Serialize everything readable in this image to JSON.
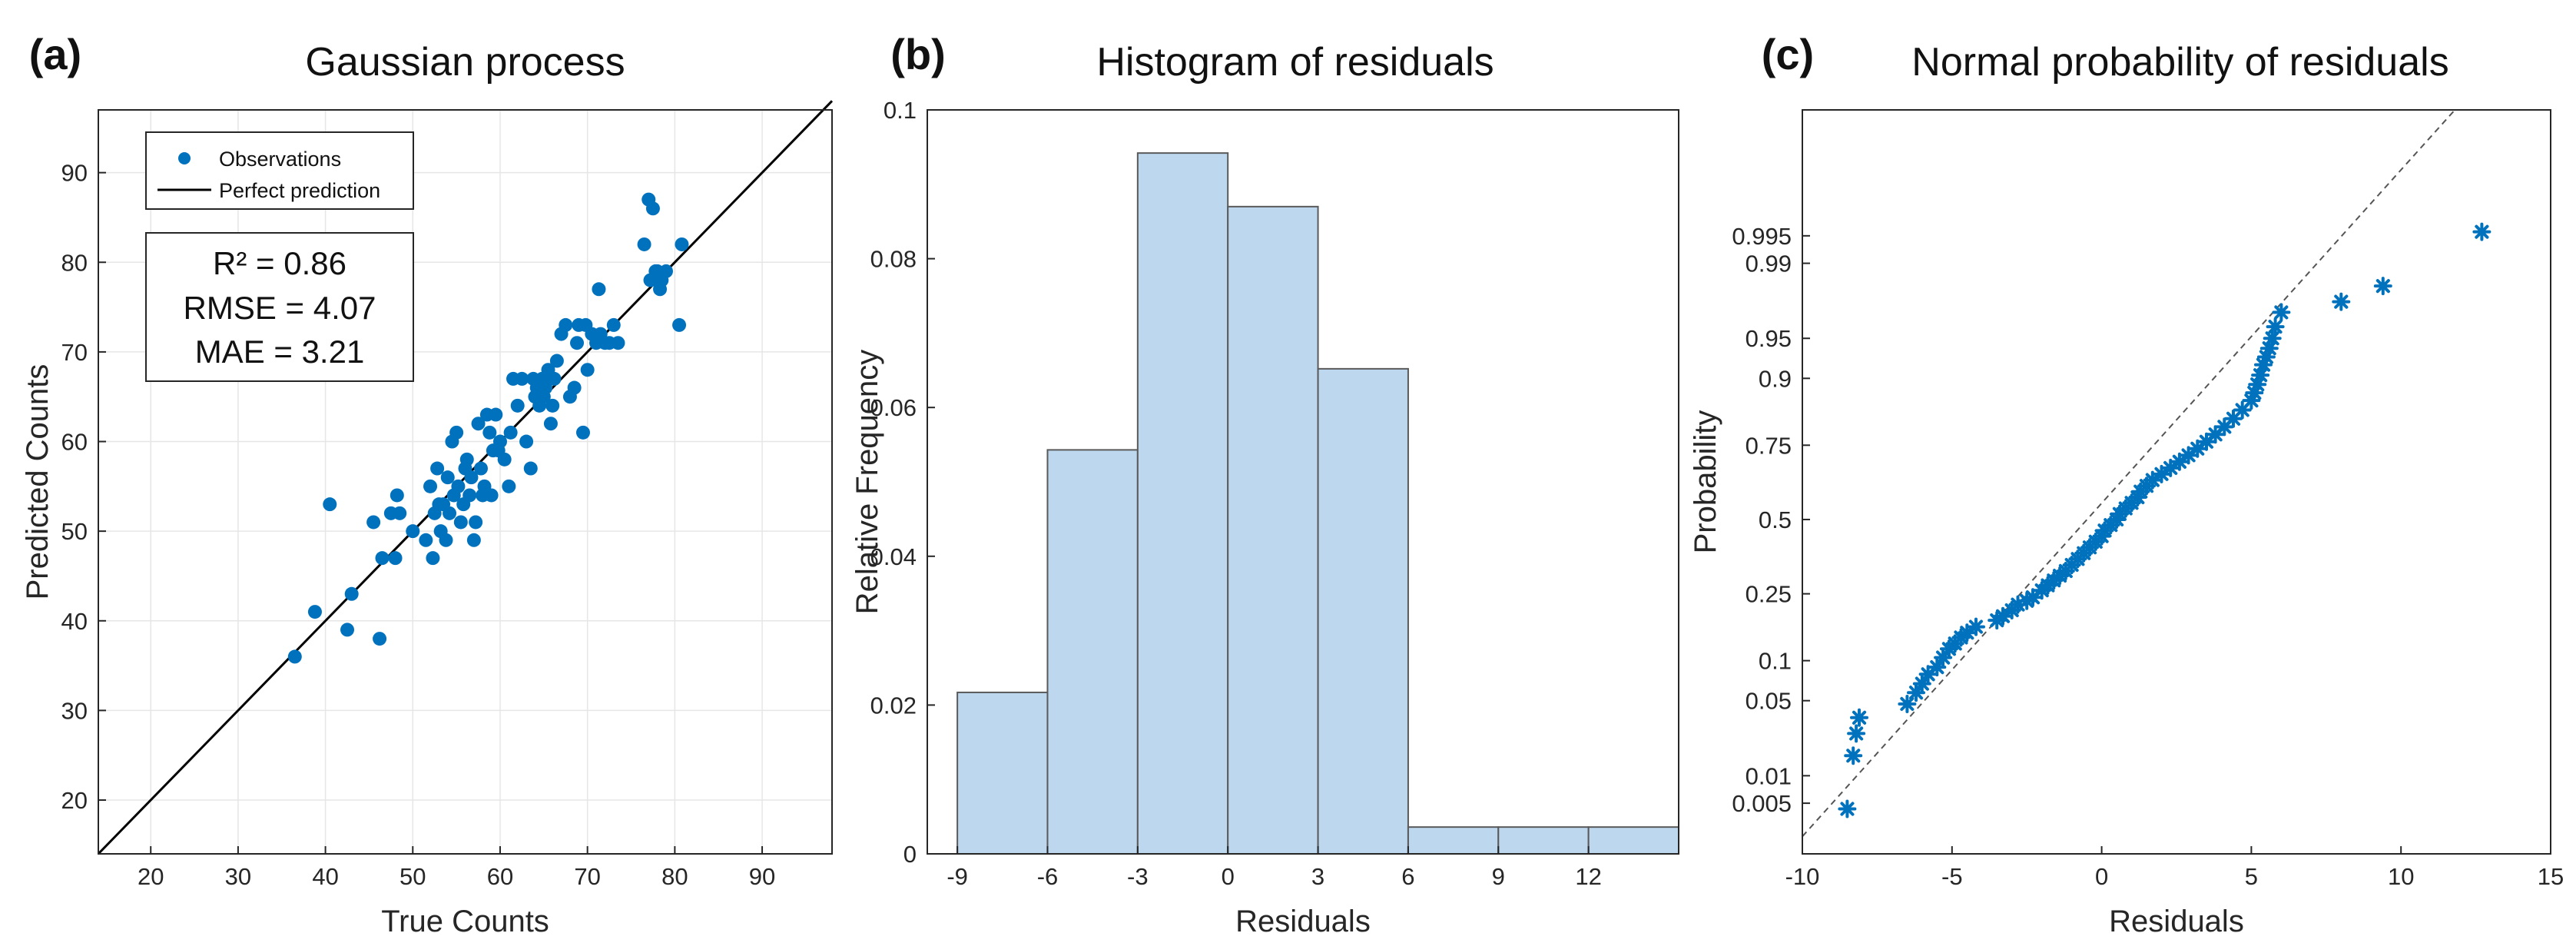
{
  "colors": {
    "marker": "#0072BD",
    "bar_fill": "#BDD7EE",
    "bar_edge": "#5A5A5A",
    "line": "#000000",
    "ref_line": "#555555"
  },
  "chart_data": [
    {
      "panel_label": "(a)",
      "type": "scatter",
      "title": "Gaussian process",
      "xlabel": "True Counts",
      "ylabel": "Predicted Counts",
      "xlim": [
        14,
        98
      ],
      "ylim": [
        14,
        97
      ],
      "xticks": [
        20,
        30,
        40,
        50,
        60,
        70,
        80,
        90
      ],
      "yticks": [
        20,
        30,
        40,
        50,
        60,
        70,
        80,
        90
      ],
      "grid": true,
      "legend": {
        "position": "top-left",
        "entries": [
          "Observations",
          "Perfect prediction"
        ]
      },
      "stats": {
        "r2_label": "R² = 0.86",
        "rmse_label": "RMSE = 4.07",
        "mae_label": "MAE = 3.21"
      },
      "reference_line": {
        "name": "Perfect prediction",
        "x": [
          14,
          98
        ],
        "y": [
          14,
          98
        ]
      },
      "series": [
        {
          "name": "Observations",
          "points": [
            [
              36.5,
              36
            ],
            [
              38.8,
              41
            ],
            [
              40.5,
              53
            ],
            [
              42.5,
              39
            ],
            [
              43,
              43
            ],
            [
              45.5,
              51
            ],
            [
              46.5,
              47
            ],
            [
              46.2,
              38
            ],
            [
              47.5,
              52
            ],
            [
              48,
              47
            ],
            [
              48.2,
              54
            ],
            [
              48.5,
              52
            ],
            [
              50,
              50
            ],
            [
              51.5,
              49
            ],
            [
              52,
              55
            ],
            [
              52.3,
              47
            ],
            [
              52.5,
              52
            ],
            [
              52.8,
              57
            ],
            [
              53,
              53
            ],
            [
              53.2,
              50
            ],
            [
              53.5,
              53
            ],
            [
              53.8,
              49
            ],
            [
              54,
              56
            ],
            [
              54.2,
              52
            ],
            [
              54.5,
              60
            ],
            [
              54.7,
              54
            ],
            [
              55,
              61
            ],
            [
              55.2,
              55
            ],
            [
              55.5,
              51
            ],
            [
              55.8,
              53
            ],
            [
              56,
              57
            ],
            [
              56.2,
              58
            ],
            [
              56.5,
              54
            ],
            [
              56.7,
              56
            ],
            [
              57,
              49
            ],
            [
              57.2,
              51
            ],
            [
              57.5,
              62
            ],
            [
              57.8,
              57
            ],
            [
              58,
              54
            ],
            [
              58.2,
              55
            ],
            [
              58.5,
              63
            ],
            [
              58.8,
              61
            ],
            [
              59,
              54
            ],
            [
              59.2,
              59
            ],
            [
              59.5,
              63
            ],
            [
              59.8,
              59
            ],
            [
              60,
              60
            ],
            [
              60.5,
              58
            ],
            [
              61,
              55
            ],
            [
              61.2,
              61
            ],
            [
              61.5,
              67
            ],
            [
              62,
              64
            ],
            [
              62.5,
              67
            ],
            [
              63,
              60
            ],
            [
              63.5,
              57
            ],
            [
              63.8,
              67
            ],
            [
              64,
              65
            ],
            [
              64.2,
              66
            ],
            [
              64.5,
              64
            ],
            [
              64.8,
              67
            ],
            [
              65,
              65
            ],
            [
              65.2,
              66
            ],
            [
              65.5,
              68
            ],
            [
              65.8,
              62
            ],
            [
              66,
              64
            ],
            [
              66.2,
              67
            ],
            [
              66.5,
              69
            ],
            [
              67,
              72
            ],
            [
              67.5,
              73
            ],
            [
              68,
              65
            ],
            [
              68.5,
              66
            ],
            [
              68.8,
              71
            ],
            [
              69,
              73
            ],
            [
              69.5,
              61
            ],
            [
              69.8,
              73
            ],
            [
              70,
              68
            ],
            [
              70.5,
              72
            ],
            [
              71,
              71
            ],
            [
              71.3,
              77
            ],
            [
              71.5,
              72
            ],
            [
              72,
              71
            ],
            [
              72.5,
              71
            ],
            [
              73,
              73
            ],
            [
              73.5,
              71
            ],
            [
              76.5,
              82
            ],
            [
              77,
              87
            ],
            [
              77.2,
              78
            ],
            [
              77.5,
              86
            ],
            [
              77.8,
              79
            ],
            [
              78,
              79
            ],
            [
              78.3,
              77
            ],
            [
              78.5,
              78
            ],
            [
              79,
              79
            ],
            [
              80.5,
              73
            ],
            [
              80.8,
              82
            ]
          ]
        }
      ]
    },
    {
      "panel_label": "(b)",
      "type": "bar",
      "title": "Histogram of residuals",
      "xlabel": "Residuals",
      "ylabel": "Relative Frequency",
      "xlim": [
        -10,
        15
      ],
      "ylim": [
        0,
        0.1
      ],
      "xticks": [
        -9,
        -6,
        -3,
        0,
        3,
        6,
        9,
        12
      ],
      "xtick_labels": [
        "-9",
        "-6",
        "-3",
        "0",
        "3",
        "6",
        "9",
        "12"
      ],
      "yticks": [
        0,
        0.02,
        0.04,
        0.06,
        0.08,
        0.1
      ],
      "ytick_labels": [
        "0",
        "0.02",
        "0.04",
        "0.06",
        "0.08",
        "0.1"
      ],
      "grid": false,
      "bin_edges": [
        -9,
        -6,
        -3,
        0,
        3,
        6,
        9,
        12,
        15
      ],
      "values": [
        0.0217,
        0.0543,
        0.0942,
        0.087,
        0.0652,
        0.0036,
        0.0036,
        0.0036
      ]
    },
    {
      "panel_label": "(c)",
      "type": "scatter",
      "title": "Normal probability of residuals",
      "xlabel": "Residuals",
      "ylabel": "Probability",
      "xlim": [
        -10,
        15
      ],
      "xticks": [
        -10,
        -5,
        0,
        5,
        10,
        15
      ],
      "yticks": [
        0.005,
        0.01,
        0.05,
        0.1,
        0.25,
        0.5,
        0.75,
        0.9,
        0.95,
        0.99,
        0.995
      ],
      "ytick_labels": [
        "0.005",
        "0.01",
        "0.05",
        "0.1",
        "0.25",
        "0.5",
        "0.75",
        "0.9",
        "0.95",
        "0.99",
        "0.995"
      ],
      "prob_range": [
        0.0012,
        0.9999
      ],
      "grid": false,
      "reference_line": {
        "style": "dashed",
        "x": [
          -10,
          11.8
        ],
        "p": [
          0.002,
          0.9999
        ]
      },
      "series": [
        {
          "name": "Residuals",
          "points": [
            [
              -8.5,
              0.0043
            ],
            [
              -8.3,
              0.016
            ],
            [
              -8.2,
              0.026
            ],
            [
              -8.1,
              0.036
            ],
            [
              -6.5,
              0.047
            ],
            [
              -6.2,
              0.058
            ],
            [
              -6.0,
              0.068
            ],
            [
              -5.8,
              0.08
            ],
            [
              -5.5,
              0.09
            ],
            [
              -5.3,
              0.105
            ],
            [
              -5.1,
              0.12
            ],
            [
              -4.9,
              0.13
            ],
            [
              -4.7,
              0.142
            ],
            [
              -4.5,
              0.152
            ],
            [
              -4.2,
              0.165
            ],
            [
              -3.5,
              0.18
            ],
            [
              -3.3,
              0.19
            ],
            [
              -3.0,
              0.205
            ],
            [
              -2.8,
              0.22
            ],
            [
              -2.5,
              0.23
            ],
            [
              -2.3,
              0.24
            ],
            [
              -2.0,
              0.26
            ],
            [
              -1.8,
              0.275
            ],
            [
              -1.6,
              0.29
            ],
            [
              -1.4,
              0.305
            ],
            [
              -1.2,
              0.32
            ],
            [
              -1.0,
              0.34
            ],
            [
              -0.8,
              0.36
            ],
            [
              -0.6,
              0.38
            ],
            [
              -0.4,
              0.4
            ],
            [
              -0.2,
              0.42
            ],
            [
              0.0,
              0.44
            ],
            [
              0.1,
              0.46
            ],
            [
              0.3,
              0.48
            ],
            [
              0.5,
              0.5
            ],
            [
              0.6,
              0.52
            ],
            [
              0.8,
              0.54
            ],
            [
              1.0,
              0.56
            ],
            [
              1.2,
              0.58
            ],
            [
              1.3,
              0.6
            ],
            [
              1.5,
              0.62
            ],
            [
              1.7,
              0.64
            ],
            [
              2.0,
              0.66
            ],
            [
              2.3,
              0.68
            ],
            [
              2.6,
              0.7
            ],
            [
              2.9,
              0.72
            ],
            [
              3.2,
              0.74
            ],
            [
              3.5,
              0.76
            ],
            [
              3.8,
              0.78
            ],
            [
              4.1,
              0.8
            ],
            [
              4.4,
              0.82
            ],
            [
              4.7,
              0.84
            ],
            [
              5.0,
              0.86
            ],
            [
              5.1,
              0.875
            ],
            [
              5.2,
              0.89
            ],
            [
              5.3,
              0.905
            ],
            [
              5.4,
              0.92
            ],
            [
              5.5,
              0.93
            ],
            [
              5.6,
              0.94
            ],
            [
              5.7,
              0.95
            ],
            [
              5.8,
              0.96
            ],
            [
              6.0,
              0.97
            ],
            [
              8.0,
              0.976
            ],
            [
              9.4,
              0.983
            ],
            [
              12.7,
              0.9955
            ]
          ]
        }
      ]
    }
  ]
}
